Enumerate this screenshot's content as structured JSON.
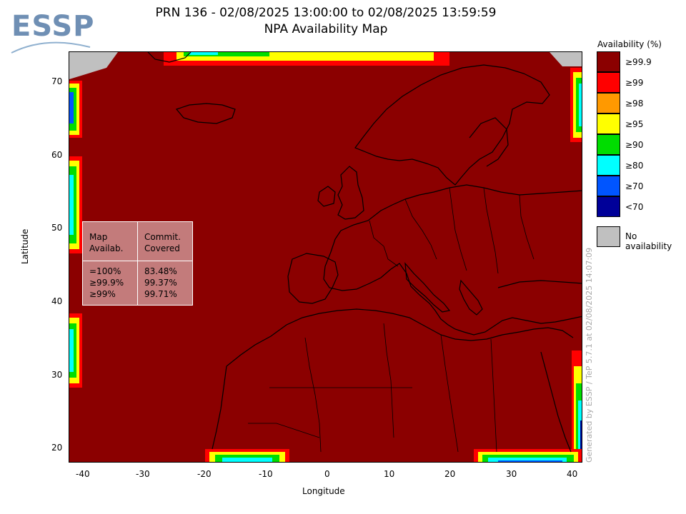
{
  "header": {
    "title_line1": "PRN 136 - 02/08/2025 13:00:00 to 02/08/2025 13:59:59",
    "title_line2": "NPA Availability Map",
    "logo_text": "ESSP"
  },
  "axes": {
    "x_label": "Longitude",
    "y_label": "Latitude",
    "x_ticks": [
      "-40",
      "-30",
      "-20",
      "-10",
      "0",
      "10",
      "20",
      "30",
      "40"
    ],
    "y_ticks": [
      "70",
      "60",
      "50",
      "40",
      "30",
      "20"
    ],
    "x_range": [
      -42,
      42
    ],
    "y_range": [
      18,
      74
    ]
  },
  "stats_table": {
    "col1_header": "Map\nAvailab.",
    "col2_header": "Commit.\nCovered",
    "col1_values": "=100%\n≥99.9%\n≥99%",
    "col2_values": "83.48%\n99.37%\n99.71%"
  },
  "legend": {
    "title": "Availability (%)",
    "items": [
      {
        "label": "≥99.9",
        "color": "#8b0000"
      },
      {
        "label": "≥99",
        "color": "#ff0000"
      },
      {
        "label": "≥98",
        "color": "#ff9900"
      },
      {
        "label": "≥95",
        "color": "#ffff00"
      },
      {
        "label": "≥90",
        "color": "#00dd00"
      },
      {
        "label": "≥80",
        "color": "#00ffff"
      },
      {
        "label": "≥70",
        "color": "#0055ff"
      },
      {
        "label": "<70",
        "color": "#000099"
      }
    ],
    "no_availability": {
      "label": "No availability",
      "color": "#c0c0c0"
    }
  },
  "credit": "Generated by ESSP / TeP 5.7.1 at 02/08/2025 14:07:09"
}
